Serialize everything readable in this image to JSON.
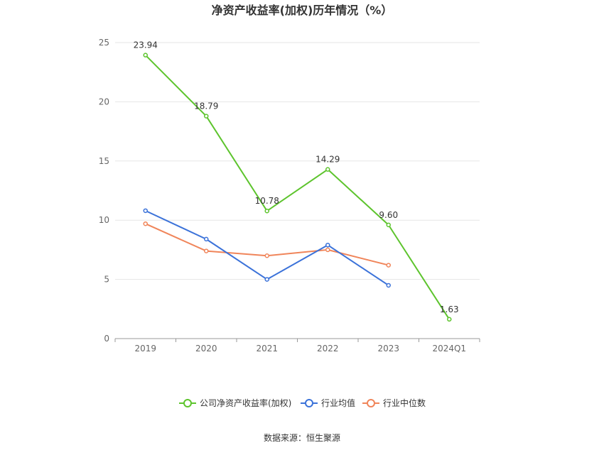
{
  "chart_data": {
    "type": "line",
    "title": "净资产收益率(加权)历年情况（%）",
    "categories": [
      "2019",
      "2020",
      "2021",
      "2022",
      "2023",
      "2024Q1"
    ],
    "ylim": [
      0,
      25
    ],
    "yticks": [
      0,
      5,
      10,
      15,
      20,
      25
    ],
    "grid": true,
    "legend_position": "bottom-center",
    "series": [
      {
        "name": "公司净资产收益率(加权)",
        "color": "#5dc42d",
        "values": [
          23.94,
          18.79,
          10.78,
          14.29,
          9.6,
          1.63
        ],
        "labels": [
          "23.94",
          "18.79",
          "10.78",
          "14.29",
          "9.60",
          "1.63"
        ]
      },
      {
        "name": "行业均值",
        "color": "#3b72d9",
        "values": [
          10.8,
          8.4,
          5.0,
          7.9,
          4.5,
          null
        ]
      },
      {
        "name": "行业中位数",
        "color": "#f0855a",
        "values": [
          9.7,
          7.4,
          7.0,
          7.5,
          6.2,
          null
        ]
      }
    ]
  },
  "source": "数据来源：恒生聚源"
}
